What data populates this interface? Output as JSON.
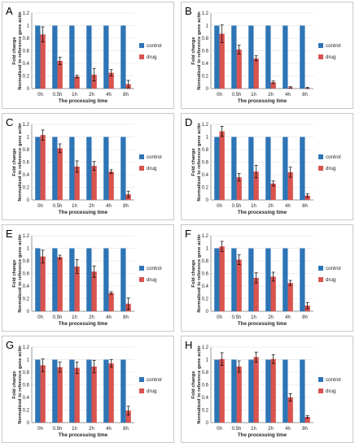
{
  "colors": {
    "control": "#2e75b6",
    "drug": "#d9534f",
    "grid": "#d9d9d9",
    "axis": "#7f7f7f"
  },
  "chart_data": [
    {
      "panel": "A",
      "type": "bar",
      "categories": [
        "0h",
        "0.5h",
        "1h",
        "2h",
        "4h",
        "8h"
      ],
      "xlabel": "The processing time",
      "ylabel": "Fold change Normalized to reference gene actin",
      "ylim": [
        0,
        1.2
      ],
      "yticks": [
        "0",
        "0.2",
        "0.4",
        "0.6",
        "0.8",
        "1",
        "1.2"
      ],
      "grid": true,
      "legend": "right",
      "series": [
        {
          "name": "control",
          "values": [
            1,
            1,
            1,
            1,
            1,
            1
          ],
          "errors": [
            0,
            0,
            0,
            0,
            0,
            0
          ]
        },
        {
          "name": "drug",
          "values": [
            0.86,
            0.44,
            0.19,
            0.22,
            0.25,
            0.07
          ],
          "errors": [
            0.12,
            0.06,
            0.02,
            0.1,
            0.05,
            0.06
          ]
        }
      ]
    },
    {
      "panel": "B",
      "type": "bar",
      "categories": [
        "0h",
        "0.5h",
        "1h",
        "2h",
        "4h",
        "8h"
      ],
      "xlabel": "The processing time",
      "ylabel": "Fold change Normalized to reference gene actin",
      "ylim": [
        0,
        1.2
      ],
      "yticks": [
        "0",
        "0.2",
        "0.4",
        "0.6",
        "0.8",
        "1",
        "1.2"
      ],
      "grid": true,
      "legend": "right",
      "series": [
        {
          "name": "control",
          "values": [
            1,
            1,
            1,
            1,
            1,
            1
          ],
          "errors": [
            0,
            0,
            0,
            0,
            0,
            0
          ]
        },
        {
          "name": "drug",
          "values": [
            0.87,
            0.62,
            0.48,
            0.1,
            0.02,
            0.01
          ],
          "errors": [
            0.14,
            0.07,
            0.04,
            0.02,
            0.01,
            0.01
          ]
        }
      ]
    },
    {
      "panel": "C",
      "type": "bar",
      "categories": [
        "0h",
        "0.5h",
        "1h",
        "2h",
        "4h",
        "8h"
      ],
      "xlabel": "The processing time",
      "ylabel": "Fold change Normalized to reference gene actin",
      "ylim": [
        0,
        1.2
      ],
      "yticks": [
        "0",
        "0.2",
        "0.4",
        "0.6",
        "0.8",
        "1",
        "1.2"
      ],
      "grid": true,
      "legend": "right",
      "series": [
        {
          "name": "control",
          "values": [
            1,
            1,
            1,
            1,
            1,
            1
          ],
          "errors": [
            0,
            0,
            0,
            0,
            0,
            0
          ]
        },
        {
          "name": "drug",
          "values": [
            1.03,
            0.82,
            0.53,
            0.54,
            0.45,
            0.09
          ],
          "errors": [
            0.08,
            0.07,
            0.09,
            0.07,
            0.03,
            0.05
          ]
        }
      ]
    },
    {
      "panel": "D",
      "type": "bar",
      "categories": [
        "0h",
        "0.5h",
        "1h",
        "2h",
        "4h",
        "8h"
      ],
      "xlabel": "The processing time",
      "ylabel": "Fold change Normalized to reference gene actin",
      "ylim": [
        0,
        1.2
      ],
      "yticks": [
        "0",
        "0.2",
        "0.4",
        "0.6",
        "0.8",
        "1",
        "1.2"
      ],
      "grid": true,
      "legend": "right",
      "series": [
        {
          "name": "control",
          "values": [
            1,
            1,
            1,
            1,
            1,
            1
          ],
          "errors": [
            0,
            0,
            0,
            0,
            0,
            0
          ]
        },
        {
          "name": "drug",
          "values": [
            1.09,
            0.36,
            0.45,
            0.26,
            0.44,
            0.07
          ],
          "errors": [
            0.08,
            0.06,
            0.1,
            0.04,
            0.08,
            0.03
          ]
        }
      ]
    },
    {
      "panel": "E",
      "type": "bar",
      "categories": [
        "0h",
        "0.5h",
        "1h",
        "2h",
        "4h",
        "8h"
      ],
      "xlabel": "The processing time",
      "ylabel": "Fold change Normalized to reference gene actin",
      "ylim": [
        0,
        1.2
      ],
      "yticks": [
        "0",
        "0.2",
        "0.4",
        "0.6",
        "0.8",
        "1",
        "1.2"
      ],
      "grid": true,
      "legend": "right",
      "series": [
        {
          "name": "control",
          "values": [
            1,
            1,
            1,
            1,
            1,
            1
          ],
          "errors": [
            0,
            0,
            0,
            0,
            0,
            0
          ]
        },
        {
          "name": "drug",
          "values": [
            0.87,
            0.86,
            0.71,
            0.63,
            0.29,
            0.12
          ],
          "errors": [
            0.1,
            0.03,
            0.11,
            0.09,
            0.02,
            0.09
          ]
        }
      ]
    },
    {
      "panel": "F",
      "type": "bar",
      "categories": [
        "0h",
        "0.5h",
        "1h",
        "2h",
        "4h",
        "8h"
      ],
      "xlabel": "The processing time",
      "ylabel": "Fold change Normalized to reference gene actin",
      "ylim": [
        0,
        1.2
      ],
      "yticks": [
        "0",
        "0.2",
        "0.4",
        "0.6",
        "0.8",
        "1",
        "1.2"
      ],
      "grid": true,
      "legend": "right",
      "series": [
        {
          "name": "control",
          "values": [
            1,
            1,
            1,
            1,
            1,
            1
          ],
          "errors": [
            0,
            0,
            0,
            0,
            0,
            0
          ]
        },
        {
          "name": "drug",
          "values": [
            1.03,
            0.82,
            0.53,
            0.55,
            0.45,
            0.09
          ],
          "errors": [
            0.08,
            0.08,
            0.08,
            0.07,
            0.04,
            0.05
          ]
        }
      ]
    },
    {
      "panel": "G",
      "type": "bar",
      "categories": [
        "0h",
        "0.5h",
        "1h",
        "2h",
        "4h",
        "8h"
      ],
      "xlabel": "The processing time",
      "ylabel": "Fold change Normalized to reference gene actin",
      "ylim": [
        0,
        1.2
      ],
      "yticks": [
        "0",
        "0.2",
        "0.4",
        "0.6",
        "0.8",
        "1",
        "1.2"
      ],
      "grid": true,
      "legend": "right",
      "series": [
        {
          "name": "control",
          "values": [
            1,
            1,
            1,
            1,
            1,
            1
          ],
          "errors": [
            0,
            0,
            0,
            0,
            0,
            0
          ]
        },
        {
          "name": "drug",
          "values": [
            0.91,
            0.88,
            0.87,
            0.89,
            0.94,
            0.19
          ],
          "errors": [
            0.1,
            0.08,
            0.09,
            0.1,
            0.06,
            0.07
          ]
        }
      ]
    },
    {
      "panel": "H",
      "type": "bar",
      "categories": [
        "0h",
        "0.5h",
        "1h",
        "2h",
        "4h",
        "8h"
      ],
      "xlabel": "The processing time",
      "ylabel": "Fold change Normalized to reference gene actin",
      "ylim": [
        0,
        1.2
      ],
      "yticks": [
        "0",
        "0.2",
        "0.4",
        "0.6",
        "0.8",
        "1",
        "1.2"
      ],
      "grid": true,
      "legend": "right",
      "series": [
        {
          "name": "control",
          "values": [
            1,
            1,
            1,
            1,
            1,
            1
          ],
          "errors": [
            0,
            0,
            0,
            0,
            0,
            0
          ]
        },
        {
          "name": "drug",
          "values": [
            1.01,
            0.89,
            1.04,
            1.01,
            0.4,
            0.09
          ],
          "errors": [
            0.1,
            0.09,
            0.08,
            0.07,
            0.06,
            0.02
          ]
        }
      ]
    }
  ]
}
